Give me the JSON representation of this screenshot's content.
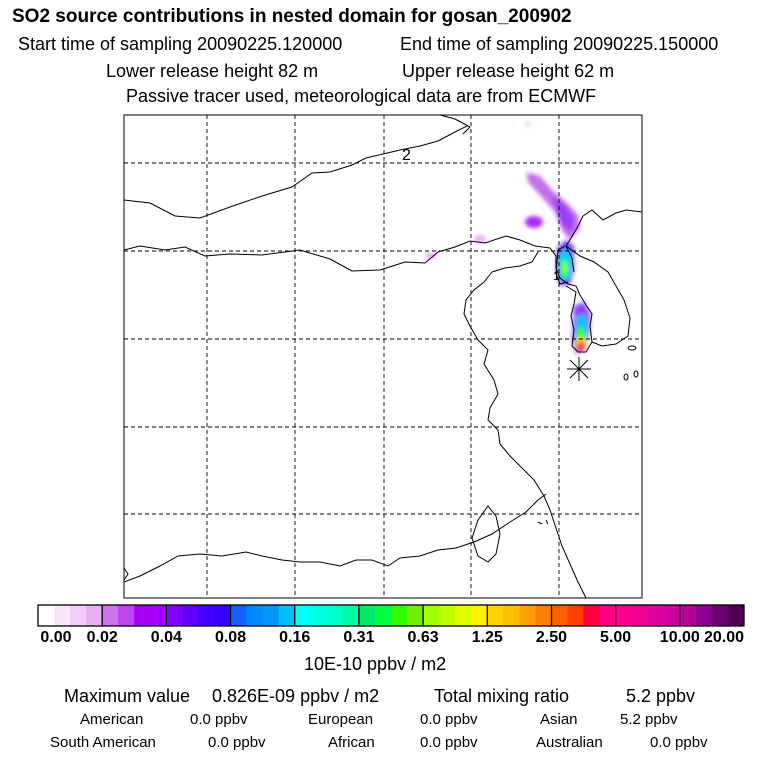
{
  "title": "SO2 source contributions in nested domain for gosan_200902",
  "header": {
    "start_label": "Start time of sampling 20090225.120000",
    "end_label": "End time of sampling 20090225.150000",
    "lower_label": "Lower release height   82 m",
    "upper_label": "Upper release height   62 m",
    "info": "Passive tracer used, meteorological data are from ECMWF"
  },
  "map": {
    "contour_labels": [
      "2",
      "1"
    ],
    "receptor_marker": "receptor-star"
  },
  "colorbar": {
    "ticks": [
      "0.00",
      "0.02",
      "0.04",
      "0.08",
      "0.16",
      "0.31",
      "0.63",
      "1.25",
      "2.50",
      "5.00",
      "10.00",
      "20.00"
    ],
    "colors": [
      "#ffffff",
      "#fae6fb",
      "#f3cdf6",
      "#e8b0f0",
      "#cf74ee",
      "#c044ef",
      "#a800f2",
      "#a400ff",
      "#8400ff",
      "#6400ff",
      "#4400ff",
      "#3600ff",
      "#1460ff",
      "#0088ff",
      "#0098f8",
      "#00c0ff",
      "#00ffff",
      "#00ffe0",
      "#00ffc8",
      "#00ffa0",
      "#00e868",
      "#00ff40",
      "#30ff00",
      "#70f000",
      "#a0ff00",
      "#c0ff00",
      "#e0ff00",
      "#fff000",
      "#ffd200",
      "#ffc000",
      "#ffa000",
      "#ff8000",
      "#ff6000",
      "#ff4000",
      "#ff0040",
      "#ff0080",
      "#ff0090",
      "#f00090",
      "#e000a0",
      "#d000a0",
      "#b80098",
      "#900090",
      "#700070",
      "#500050"
    ],
    "unit": "10E-10 ppbv / m2"
  },
  "summary": {
    "max_label": "Maximum value",
    "max_value": "0.826E-09 ppbv / m2",
    "total_label": "Total mixing ratio",
    "total_value": "5.2 ppbv",
    "regions": [
      {
        "name": "American",
        "value": "0.0 ppbv"
      },
      {
        "name": "European",
        "value": "0.0 ppbv"
      },
      {
        "name": "Asian",
        "value": "5.2 ppbv"
      },
      {
        "name": "South American",
        "value": "0.0 ppbv"
      },
      {
        "name": "African",
        "value": "0.0 ppbv"
      },
      {
        "name": "Australian",
        "value": "0.0 ppbv"
      }
    ]
  }
}
